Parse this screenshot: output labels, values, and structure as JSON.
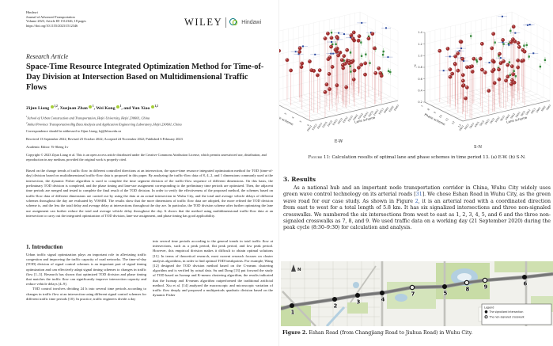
{
  "left_page": {
    "header": {
      "publisher": "Hindawi",
      "journal": "Journal of Advanced Transportation",
      "volume_line": "Volume 2023, Article ID 1512346, 18 pages",
      "doi": "https://doi.org/10.1155/2023/1512346"
    },
    "brand": {
      "wiley": "WILEY",
      "hindawi": "Hindawi"
    },
    "article_type": "Research Article",
    "title": "Space-Time Resource Integrated Optimization Method for Time-of-Day Division at Intersection Based on Multidimensional Traffic Flows",
    "authors": [
      {
        "name": "Zijun Liang",
        "sup": "1,2",
        "sep": ", "
      },
      {
        "name": "Xuejuan Zhan",
        "sup": "1",
        "sep": ", "
      },
      {
        "name": "Wei Kong",
        "sup": "1",
        "sep": ", and "
      },
      {
        "name": "Yun Xiao",
        "sup": "1,2",
        "sep": ""
      }
    ],
    "affiliations": [
      {
        "sup": "1",
        "text": "School of Urban Construction and Transportation, Hefei University, Hefei 230601, China"
      },
      {
        "sup": "2",
        "text": "Anhui Province Transportation Big Data Analysis and Application Engineering Laboratory, Hefei 230601, China"
      }
    ],
    "correspondence_prefix": "Correspondence should be addressed to Zijun Liang; ",
    "correspondence_email": "lzj@hfuu.edu.cn",
    "dates": "Received 13 September 2022; Revised 23 October 2022; Accepted 24 November 2022; Published 6 February 2023",
    "editor": "Academic Editor: Yi-Sheng Lv",
    "copyright": "Copyright © 2023 Zijun Liang et al. This is an open access article distributed under the Creative Commons Attribution License, which permits unrestricted use, distribution, and reproduction in any medium, provided the original work is properly cited.",
    "abstract": "Based on the change trends of traffic flow in different controlled directions at an intersection, the space-time resource integrated optimization method for TOD (time-of-day) division based on multidimensional traffic-flow data is proposed in this paper. By analyzing the traffic-flow data of 8, 4, 2, and 1 dimensions commonly used at the intersection, the dynamic Fisher algorithm is used to complete the time segment division of the traffic-flow sequence of different dimensions. On this basis, the preliminary TOD division is completed, and the phase timing and lane-use assignment corresponding to the preliminary time periods are optimized. Then, the adjacent time periods are merged and tested to complete the final result of the TOD division. In order to verify the effectiveness of the proposed method, the schemes based on traffic-flow data of different dimensions are carried out by using the data at an actual intersection in Wuhu City, and the total and average vehicle delays of different schemes throughout the day are evaluated by VISSIM. The results show that the more dimensions of traffic flow data are adopted, the more refined the TOD division scheme is, and the less the total delay and average delay at intersections throughout the day are. In particular, the TOD division scheme after further optimizing the lane use assignment can further reduce the total and average vehicle delay throughout the day. It shows that the method using multidimensional traffic-flow data at an intersection to carry out the integrated optimization of TOD division, lane-use assignment, and phase timing has good applicability.",
    "intro_heading": "1. Introduction",
    "intro_col1_p1": "Urban traffic signal optimization plays an important role in alleviating traffic congestion and improving the traffic capacity of road networks. The time-of-day (TOD) division of signal control schemes is an important part of signal timing optimization and can effectively adapt signal timing schemes to changes in traffic flow [1–3]. Research has shown that optimized TOD division and phase timing that matches the traffic flow can significantly improve intersection capacity and reduce vehicle delays [4–9].",
    "intro_col1_p2": "TOD control involves dividing 24 h into several time periods according to changes in traffic flow at an intersection using different signal control schemes for different traffic time periods [10]. In practice, traffic engineers divide a day",
    "intro_col2": "into several time periods according to the general trends in total traffic flow at intersections, such as a peak period, flat peak period, and low peak period. However, this empirical division makes it difficult to obtain optimal solutions [11]. In terms of theoretical research, most current research focuses on cluster analysis algorithms, in order to find optimal TOD breakpoints. For example, Wang [12] designed the TOD division method based on the C-means clustering algorithm and is verified by actual data. Su and Dong [13] put forward the study of TOD based on Isomap and K-means clustering algorithm, the results indicated that the Isomap and K-means algorithm outperformed the traditional artificial method. Xiu et al. [14] analyzed the macroscopic and microscopic variation of traffic flow deeply and proposed a multiperiods quadratic division based on the dynamic Fisher"
  },
  "right_page": {
    "figure11": {
      "caption_label": "Figure 11:",
      "caption_text": " Calculation results of optimal lane and phase schemes in time period 13. (a) E-W. (b) S-N.",
      "sublabel_a": "E-W",
      "sublabel_b": "S-N"
    },
    "section3": {
      "heading": "3. Results",
      "paragraph_parts": [
        {
          "t": "As a national hub and an important node transportation corridor in China, Wuhu City widely uses green wave control technology on its arterial roads ["
        },
        {
          "t": "31",
          "ref": true
        },
        {
          "t": "]. We chose Eshan Road in Wuhu City, as the green wave road for our case study. As shown in Figure "
        },
        {
          "t": "2",
          "ref": true
        },
        {
          "t": ", it is an arterial road with a coordinated direction from east to west for a total length of 5.8 km. It has six signalized intersections and three non-signaled crosswalks. We numbered the six intersections from west to east as 1, 2, 3, 4, 5, and 6 and the three non-signaled crosswalks as 7, 8, and 9. We used traffic data on a working day (21 September 2020) during the peak cycle (8:30–9:30) for calculation and analysis."
        }
      ]
    },
    "figure2": {
      "caption_label": "Figure 2.",
      "caption_text": " Eshan Road (from Changjiang Road to Jiuhua Road) in Wuhu City.",
      "north_label": "N",
      "legend": {
        "title": "Legend",
        "items": [
          {
            "type": "signalized",
            "label": "The signalized intersection"
          },
          {
            "type": "crosswalk",
            "label": "The non-signaled crosswalk"
          }
        ]
      },
      "points": [
        {
          "id": "1",
          "x": 14,
          "y": 56,
          "type": "signalized"
        },
        {
          "id": "2",
          "x": 68,
          "y": 48,
          "type": "signalized"
        },
        {
          "id": "3",
          "x": 97,
          "y": 43,
          "type": "signalized"
        },
        {
          "id": "4",
          "x": 128,
          "y": 40,
          "type": "signalized"
        },
        {
          "id": "7",
          "x": 166,
          "y": 33,
          "type": "crosswalk"
        },
        {
          "id": "5",
          "x": 207,
          "y": 32,
          "type": "signalized"
        },
        {
          "id": "8",
          "x": 235,
          "y": 27,
          "type": "crosswalk"
        },
        {
          "id": "9",
          "x": 258,
          "y": 24,
          "type": "crosswalk"
        },
        {
          "id": "6",
          "x": 308,
          "y": 20,
          "type": "signalized"
        }
      ]
    }
  },
  "chart_data": [
    {
      "type": "scatter",
      "projection": "3d",
      "panel": "(a)",
      "sublabel": "E-W",
      "xlabel": "Lane scheme",
      "ylabel": "Phase scheme",
      "zlabel": "Yi",
      "x_ticks": [
        "EW11",
        "EW12",
        "EW13",
        "EW21",
        "EW22",
        "EW23",
        "EW31",
        "EW32",
        "EW33",
        "EW41",
        "EW42",
        "EW43",
        "EW51",
        "EW52",
        "EW53",
        "EW61",
        "EW62",
        "EW63"
      ],
      "y_ticks": [
        "1",
        "2",
        "3",
        "4",
        "5",
        "6"
      ],
      "z_ticks": [],
      "zlim": [
        0.2,
        1.4
      ],
      "series": [
        {
          "marker": "sphere",
          "color": "#a52f2f",
          "count": 62
        },
        {
          "marker": "square",
          "color": "#2b4a9e",
          "count": 15
        },
        {
          "marker": "square",
          "color": "#3a9440",
          "count": 18
        }
      ],
      "seed": 7
    },
    {
      "type": "scatter",
      "projection": "3d",
      "panel": "(b)",
      "sublabel": "S-N",
      "xlabel": "Lane scheme",
      "ylabel": "Phase scheme",
      "zlabel": "Yi",
      "x_ticks": [
        "SN11",
        "SN12",
        "SN13",
        "SN21",
        "SN22",
        "SN23",
        "SN31",
        "SN32",
        "SN33",
        "SN41",
        "SN42",
        "SN43",
        "SN51",
        "SN52",
        "SN53",
        "SN61",
        "SN62",
        "SN63"
      ],
      "y_ticks": [
        "7",
        "8",
        "9",
        "10",
        "11",
        "12",
        "13"
      ],
      "z_ticks": [
        "0.2",
        "0.4",
        "0.6",
        "0.8",
        "1.0",
        "1.2",
        "1.4"
      ],
      "zlim": [
        0.2,
        1.4
      ],
      "series": [
        {
          "marker": "sphere",
          "color": "#a52f2f",
          "count": 62
        },
        {
          "marker": "square",
          "color": "#2b4a9e",
          "count": 15
        },
        {
          "marker": "square",
          "color": "#3a9440",
          "count": 18
        }
      ],
      "seed": 13
    }
  ]
}
